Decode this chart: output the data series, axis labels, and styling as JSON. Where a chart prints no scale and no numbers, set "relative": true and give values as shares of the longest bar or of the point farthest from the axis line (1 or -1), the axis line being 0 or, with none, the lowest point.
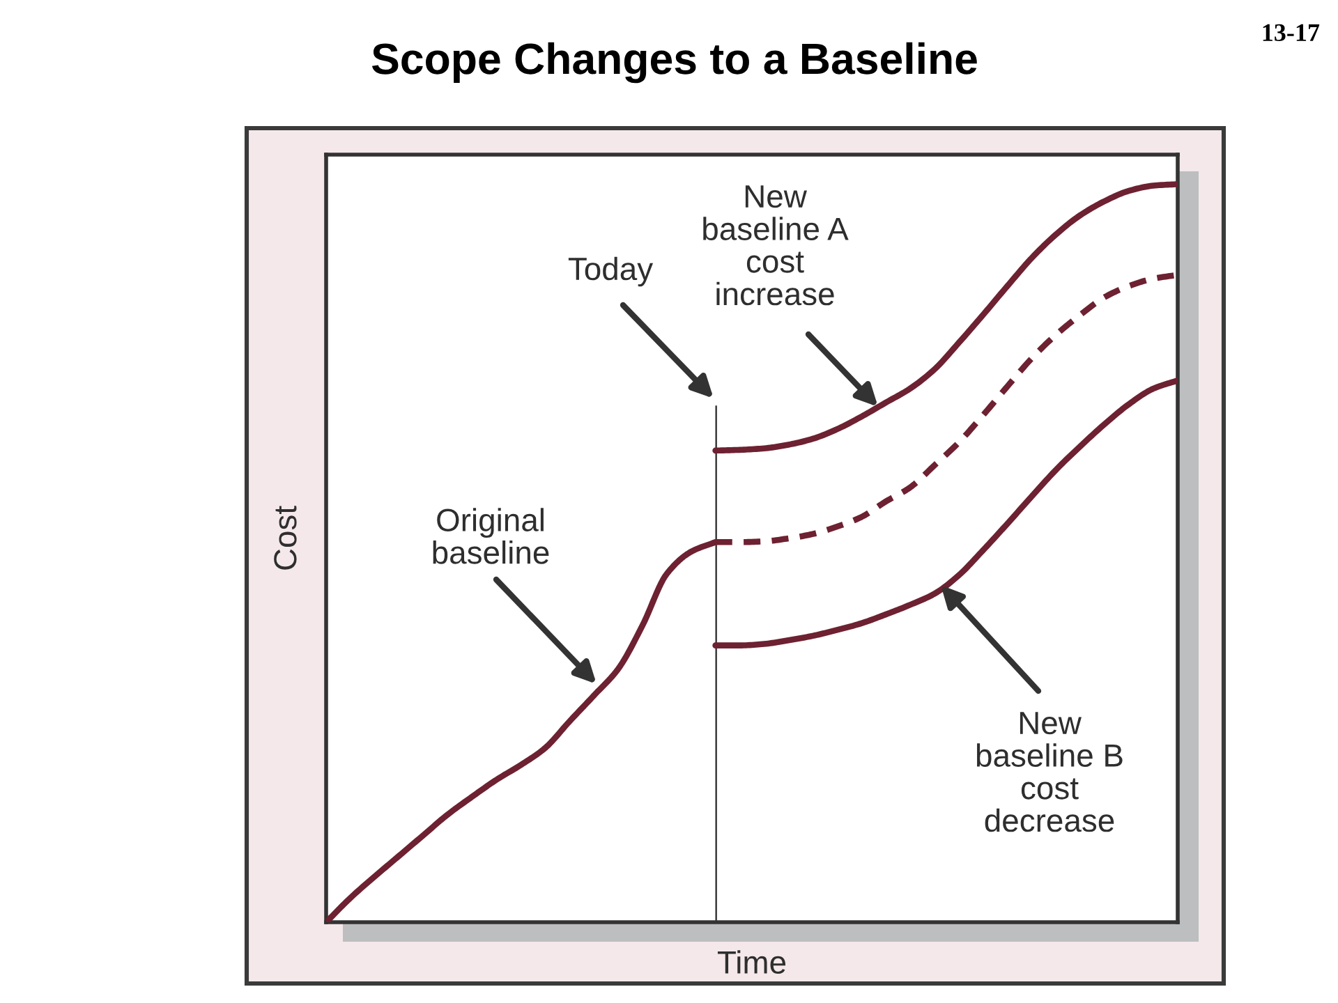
{
  "chart_data": {
    "type": "line",
    "title": "Scope Changes to a Baseline",
    "xlabel": "Time",
    "ylabel": "Cost",
    "annotations": [
      "13-17",
      "Today",
      "New\nbaseline A\ncost\nincrease",
      "Original\nbaseline",
      "New\nbaseline B\ncost\ndecrease"
    ],
    "categories": [
      null,
      null,
      null,
      null,
      null,
      null,
      null,
      null,
      null,
      null,
      null,
      null,
      null,
      null,
      null,
      null,
      null,
      null,
      null,
      null,
      null,
      null,
      null,
      null,
      null,
      null,
      null,
      null,
      null,
      null,
      null,
      null,
      null,
      null,
      null,
      null
    ],
    "relative": true,
    "line_style": "solid",
    "series": [
      {
        "color": "#6d2131",
        "values": [
          0.0,
          0.033,
          0.062,
          0.09,
          0.118,
          0.146,
          0.17,
          0.193,
          0.213,
          0.236,
          0.272,
          0.307,
          0.343,
          0.402,
          0.472,
          0.502,
          0.515,
          null,
          null,
          null,
          null,
          null,
          null,
          null,
          null,
          null,
          null,
          null,
          null,
          null,
          null,
          null,
          null,
          null,
          null,
          null
        ]
      },
      {
        "color": "#6d2131",
        "line_style": "dashed",
        "values": [
          null,
          null,
          null,
          null,
          null,
          null,
          null,
          null,
          null,
          null,
          null,
          null,
          null,
          null,
          null,
          null,
          0.515,
          0.515,
          0.516,
          0.52,
          0.526,
          0.536,
          0.549,
          0.57,
          0.589,
          0.619,
          0.65,
          0.687,
          0.726,
          0.764,
          0.796,
          0.823,
          0.847,
          0.862,
          0.872,
          0.877
        ]
      },
      {
        "color": "#6d2131",
        "values": [
          null,
          null,
          null,
          null,
          null,
          null,
          null,
          null,
          null,
          null,
          null,
          null,
          null,
          null,
          null,
          null,
          0.639,
          0.64,
          0.642,
          0.647,
          0.655,
          0.668,
          0.685,
          0.704,
          0.723,
          0.749,
          0.785,
          0.823,
          0.862,
          0.9,
          0.932,
          0.958,
          0.977,
          0.991,
          0.998,
          1.0
        ]
      },
      {
        "color": "#6d2131",
        "values": [
          null,
          null,
          null,
          null,
          null,
          null,
          null,
          null,
          null,
          null,
          null,
          null,
          null,
          null,
          null,
          null,
          0.375,
          0.375,
          0.377,
          0.382,
          0.388,
          0.396,
          0.405,
          0.417,
          0.43,
          0.445,
          0.47,
          0.504,
          0.54,
          0.577,
          0.613,
          0.645,
          0.675,
          0.702,
          0.723,
          0.734
        ]
      }
    ]
  }
}
